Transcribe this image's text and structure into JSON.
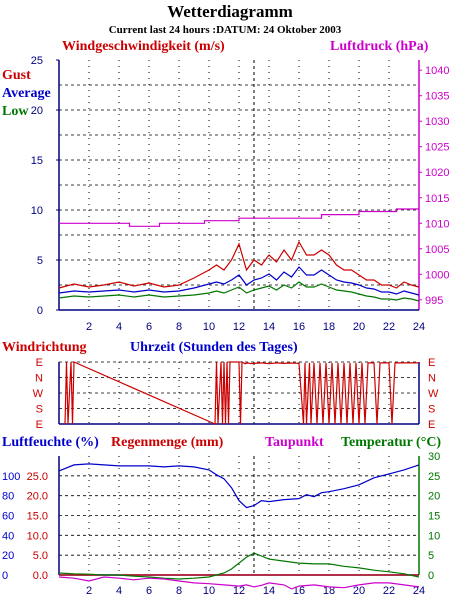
{
  "title": "Wetterdiagramm",
  "subtitle": "Current last 24 hours :DATUM: 24 Oktober 2003",
  "colors": {
    "navy": "#000080",
    "red": "#cc0000",
    "blue": "#0000cc",
    "green": "#007700",
    "magenta": "#cc00cc",
    "grid": "#000000"
  },
  "chart_data": [
    {
      "type": "line",
      "title": "",
      "label_left": "Windgeschwindigkeit (m/s)",
      "label_right": "Luftdruck (hPa)",
      "legend": [
        "Gust",
        "Average",
        "Low"
      ],
      "xlim": [
        0,
        24
      ],
      "x_ticks": [
        "2",
        "4",
        "6",
        "8",
        "10",
        "12",
        "14",
        "16",
        "18",
        "20",
        "22",
        "24"
      ],
      "ylim_left": [
        0,
        25
      ],
      "y_ticks_left": [
        "0",
        "5",
        "10",
        "15",
        "20",
        "25"
      ],
      "ylim_right": [
        993,
        1042
      ],
      "y_ticks_right": [
        "995",
        "1000",
        "1005",
        "1010",
        "1015",
        "1020",
        "1025",
        "1030",
        "1035",
        "1040"
      ],
      "series": [
        {
          "name": "Gust",
          "axis": "left",
          "x": [
            0,
            1,
            2,
            3,
            4,
            5,
            6,
            7,
            8,
            9,
            10,
            10.5,
            11,
            11.5,
            12,
            12.5,
            13,
            13.5,
            14,
            14.5,
            15,
            15.5,
            16,
            16.5,
            17,
            17.5,
            18,
            18.5,
            19,
            19.5,
            20,
            20.5,
            21,
            21.5,
            22,
            22.5,
            23,
            23.5,
            24
          ],
          "y": [
            2.2,
            2.6,
            2.3,
            2.5,
            2.8,
            2.4,
            2.7,
            2.3,
            2.5,
            3.2,
            4.0,
            4.5,
            4.0,
            5.0,
            6.6,
            4.0,
            5.0,
            4.5,
            5.5,
            4.8,
            6.0,
            5.0,
            6.8,
            5.5,
            5.5,
            6.0,
            5.5,
            4.5,
            4.0,
            4.0,
            3.5,
            3.0,
            3.0,
            2.5,
            2.5,
            2.2,
            2.8,
            2.5,
            2.3
          ]
        },
        {
          "name": "Average",
          "axis": "left",
          "x": [
            0,
            1,
            2,
            3,
            4,
            5,
            6,
            7,
            8,
            9,
            10,
            10.5,
            11,
            11.5,
            12,
            12.5,
            13,
            13.5,
            14,
            14.5,
            15,
            15.5,
            16,
            16.5,
            17,
            17.5,
            18,
            18.5,
            19,
            19.5,
            20,
            20.5,
            21,
            21.5,
            22,
            22.5,
            23,
            23.5,
            24
          ],
          "y": [
            1.7,
            1.9,
            1.8,
            1.9,
            2.0,
            1.8,
            2.0,
            1.8,
            1.9,
            2.2,
            2.6,
            2.8,
            2.6,
            3.0,
            3.5,
            2.5,
            3.0,
            3.2,
            3.6,
            3.0,
            3.8,
            3.3,
            4.3,
            3.5,
            3.5,
            4.0,
            3.5,
            3.0,
            2.8,
            2.7,
            2.5,
            2.2,
            2.1,
            1.8,
            1.8,
            1.6,
            1.9,
            1.7,
            1.5
          ]
        },
        {
          "name": "Low",
          "axis": "left",
          "x": [
            0,
            1,
            2,
            3,
            4,
            5,
            6,
            7,
            8,
            9,
            10,
            10.5,
            11,
            11.5,
            12,
            12.5,
            13,
            13.5,
            14,
            14.5,
            15,
            15.5,
            16,
            16.5,
            17,
            17.5,
            18,
            18.5,
            19,
            19.5,
            20,
            20.5,
            21,
            21.5,
            22,
            22.5,
            23,
            23.5,
            24
          ],
          "y": [
            1.2,
            1.4,
            1.3,
            1.4,
            1.5,
            1.3,
            1.5,
            1.3,
            1.4,
            1.5,
            1.7,
            1.9,
            1.7,
            2.0,
            2.3,
            1.7,
            2.0,
            2.2,
            2.4,
            2.0,
            2.5,
            2.2,
            2.8,
            2.3,
            2.3,
            2.6,
            2.3,
            2.0,
            1.9,
            1.8,
            1.6,
            1.4,
            1.3,
            1.1,
            1.1,
            1.0,
            1.2,
            1.1,
            0.9
          ]
        },
        {
          "name": "Luftdruck",
          "axis": "right",
          "x": [
            0,
            4.7,
            4.7,
            6.7,
            6.7,
            9.7,
            9.7,
            12.0,
            12.0,
            17.5,
            17.5,
            20.0,
            20.0,
            22.5,
            22.5,
            24
          ],
          "y": [
            1010,
            1010,
            1009.4,
            1009.4,
            1010,
            1010,
            1010.5,
            1010.5,
            1011,
            1011,
            1011.7,
            1011.7,
            1012.3,
            1012.3,
            1012.8,
            1012.8
          ]
        }
      ]
    },
    {
      "type": "line",
      "title": "",
      "label_left": "Windrichtung",
      "label_center": "Uhrzeit (Stunden des Tages)",
      "xlim": [
        0,
        24
      ],
      "y_ticks": [
        "E",
        "N",
        "W",
        "S",
        "E"
      ],
      "series": [
        {
          "name": "Windrichtung",
          "x": [
            0.4,
            0.5,
            0.6,
            0.8,
            0.9,
            1.0,
            10.4,
            10.5,
            10.6,
            10.8,
            10.9,
            11.0,
            11.1,
            11.2,
            11.3,
            11.4,
            12.0,
            12.1,
            12.2,
            12.4,
            12.6,
            12.8,
            13.0,
            13.5,
            14.0,
            14.5,
            15.0,
            15.5,
            16.0,
            16.3,
            16.4,
            16.5,
            16.7,
            16.8,
            17.0,
            17.2,
            17.4,
            17.6,
            17.8,
            18.0,
            18.2,
            18.4,
            18.6,
            18.8,
            19.0,
            19.2,
            19.4,
            19.6,
            19.8,
            20.0,
            20.2,
            20.4,
            20.6,
            20.8,
            21.0,
            21.2,
            21.4,
            21.6,
            21.8,
            22.0,
            22.2,
            22.4,
            22.6,
            22.8,
            23.0,
            23.2,
            23.4,
            23.6,
            24.0
          ],
          "y": [
            0,
            360,
            0,
            360,
            0,
            360,
            0,
            360,
            0,
            360,
            0,
            360,
            0,
            360,
            0,
            360,
            360,
            0,
            360,
            350,
            355,
            350,
            352,
            355,
            350,
            355,
            352,
            354,
            352,
            0,
            355,
            0,
            355,
            0,
            355,
            0,
            355,
            0,
            355,
            0,
            355,
            0,
            355,
            0,
            355,
            0,
            355,
            0,
            355,
            0,
            355,
            0,
            355,
            355,
            355,
            0,
            355,
            355,
            355,
            355,
            0,
            355,
            355,
            355,
            355,
            355,
            355,
            355,
            355
          ]
        }
      ]
    },
    {
      "type": "line",
      "title": "",
      "label_left": "Luftfeuchte (%)",
      "label_left2": "Regenmenge (mm)",
      "label_mid": "Taupunkt",
      "label_right": "Temperatur (°C)",
      "xlim": [
        0,
        24
      ],
      "x_ticks": [
        "2",
        "4",
        "6",
        "8",
        "10",
        "12",
        "14",
        "16",
        "18",
        "20",
        "22",
        "24"
      ],
      "y_ticks_humidity": [
        "0",
        "20",
        "40",
        "60",
        "80",
        "100"
      ],
      "y_ticks_rain": [
        "0.0",
        "5.0",
        "10.0",
        "15.0",
        "20.0",
        "25.0"
      ],
      "y_ticks_temp": [
        "0",
        "5",
        "10",
        "15",
        "20",
        "25",
        "30"
      ],
      "series": [
        {
          "name": "Luftfeuchte",
          "unit": "%",
          "x": [
            0,
            1,
            2,
            3,
            4,
            5,
            6,
            7,
            8,
            9,
            10,
            10.5,
            11,
            11.5,
            12,
            12.5,
            13,
            13.5,
            14,
            15,
            16,
            16.5,
            17,
            17.5,
            18,
            19,
            20,
            21,
            22,
            23,
            24
          ],
          "y": [
            105,
            111,
            112,
            111,
            110,
            110,
            110,
            109,
            110,
            109,
            106,
            101,
            97,
            88,
            75,
            68,
            70,
            75,
            74,
            76,
            77,
            81,
            79,
            83,
            84,
            87,
            91,
            98,
            102,
            106,
            111
          ]
        },
        {
          "name": "Regenmenge",
          "unit": "mm",
          "x": [
            0,
            24
          ],
          "y": [
            0,
            0
          ]
        },
        {
          "name": "Temperatur",
          "unit": "°C",
          "x": [
            0,
            1,
            2,
            3,
            4,
            5,
            6,
            7,
            8,
            9,
            10,
            11,
            11.5,
            12,
            12.5,
            13,
            13.5,
            14,
            15,
            16,
            17,
            18,
            19,
            20,
            21,
            22,
            23,
            24
          ],
          "y": [
            0.5,
            0.3,
            0.2,
            0.0,
            0.0,
            -0.3,
            -0.5,
            -0.8,
            -1.0,
            -0.8,
            -0.5,
            0.5,
            1.5,
            3.0,
            4.5,
            5.5,
            4.8,
            4.0,
            3.5,
            3.0,
            2.8,
            2.8,
            2.2,
            1.8,
            1.2,
            0.8,
            0.3,
            -0.5
          ]
        },
        {
          "name": "Taupunkt",
          "unit": "°C",
          "x": [
            0,
            1,
            2,
            3,
            4,
            5,
            6,
            7,
            8,
            9,
            10,
            11,
            12,
            12.5,
            13,
            13.5,
            14,
            15,
            15.5,
            16,
            17,
            18,
            19,
            20,
            21,
            22,
            23,
            24
          ],
          "y": [
            -0.5,
            -0.8,
            -1.5,
            -0.5,
            -0.8,
            -1.2,
            -0.8,
            -1.0,
            -1.5,
            -2.0,
            -2.2,
            -2.5,
            -2.8,
            -2.5,
            -3.0,
            -2.6,
            -2.0,
            -2.5,
            -3.5,
            -2.8,
            -2.5,
            -3.0,
            -3.2,
            -2.5,
            -2.0,
            -2.0,
            -2.5,
            -3.0
          ]
        }
      ]
    }
  ]
}
